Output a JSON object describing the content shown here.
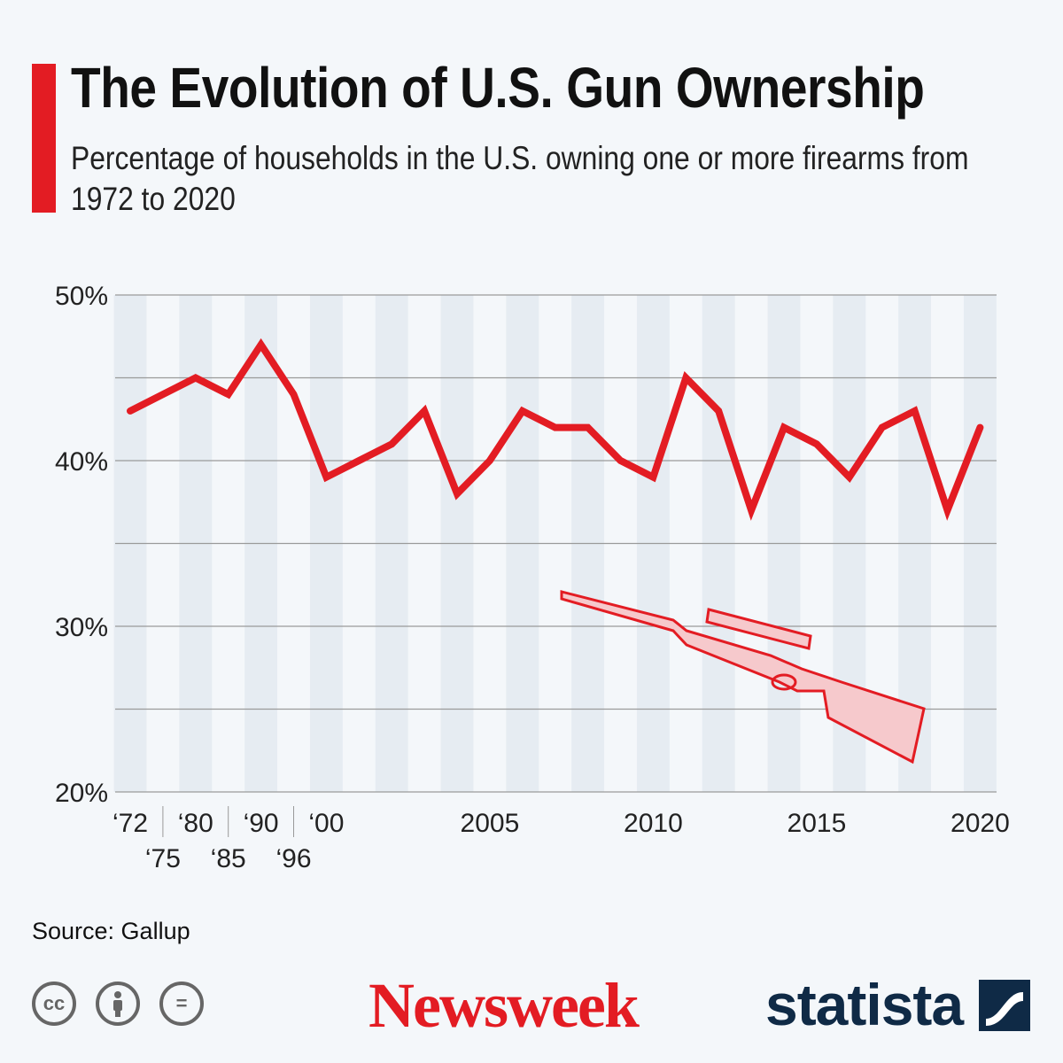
{
  "header": {
    "title": "The Evolution of U.S. Gun Ownership",
    "subtitle": "Percentage of households in the U.S. owning one or more firearms from 1972 to 2020"
  },
  "chart_data": {
    "type": "line",
    "title": "The Evolution of U.S. Gun Ownership",
    "xlabel": "",
    "ylabel": "",
    "ylim": [
      20,
      50
    ],
    "yticks": [
      {
        "v": 50,
        "label": "50%"
      },
      {
        "v": 40,
        "label": "40%"
      },
      {
        "v": 30,
        "label": "30%"
      },
      {
        "v": 20,
        "label": "20%"
      }
    ],
    "gridlines": [
      20,
      25,
      30,
      35,
      40,
      45,
      50
    ],
    "categories": [
      "1972",
      "1975",
      "1980",
      "1985",
      "1990",
      "1996",
      "2000",
      "2001",
      "2002",
      "2003",
      "2004",
      "2005",
      "2006",
      "2007",
      "2008",
      "2009",
      "2010",
      "2011",
      "2012",
      "2013",
      "2014",
      "2015",
      "2016",
      "2017",
      "2018",
      "2019",
      "2020"
    ],
    "values": [
      43,
      44,
      45,
      44,
      47,
      44,
      39,
      40,
      41,
      43,
      38,
      40,
      43,
      42,
      42,
      40,
      39,
      45,
      43,
      37,
      42,
      41,
      39,
      42,
      43,
      37,
      42
    ],
    "xticks": [
      {
        "i": 0,
        "label": "‘72",
        "row": 0
      },
      {
        "i": 1,
        "label": "‘75",
        "row": 1
      },
      {
        "i": 2,
        "label": "‘80",
        "row": 0
      },
      {
        "i": 3,
        "label": "‘85",
        "row": 1
      },
      {
        "i": 4,
        "label": "‘90",
        "row": 0
      },
      {
        "i": 5,
        "label": "‘96",
        "row": 1
      },
      {
        "i": 6,
        "label": "‘00",
        "row": 0
      },
      {
        "i": 11,
        "label": "2005",
        "row": 0
      },
      {
        "i": 16,
        "label": "2010",
        "row": 0
      },
      {
        "i": 21,
        "label": "2015",
        "row": 0
      },
      {
        "i": 26,
        "label": "2020",
        "row": 0
      }
    ],
    "line_color": "#e31c23",
    "grid": true
  },
  "footer": {
    "source": "Source: Gallup",
    "newsweek": "Newsweek",
    "statista": "statista",
    "cc_icons": [
      "cc-icon",
      "by-icon",
      "nd-icon"
    ],
    "cc_labels": [
      "cc",
      "=",
      ""
    ]
  }
}
